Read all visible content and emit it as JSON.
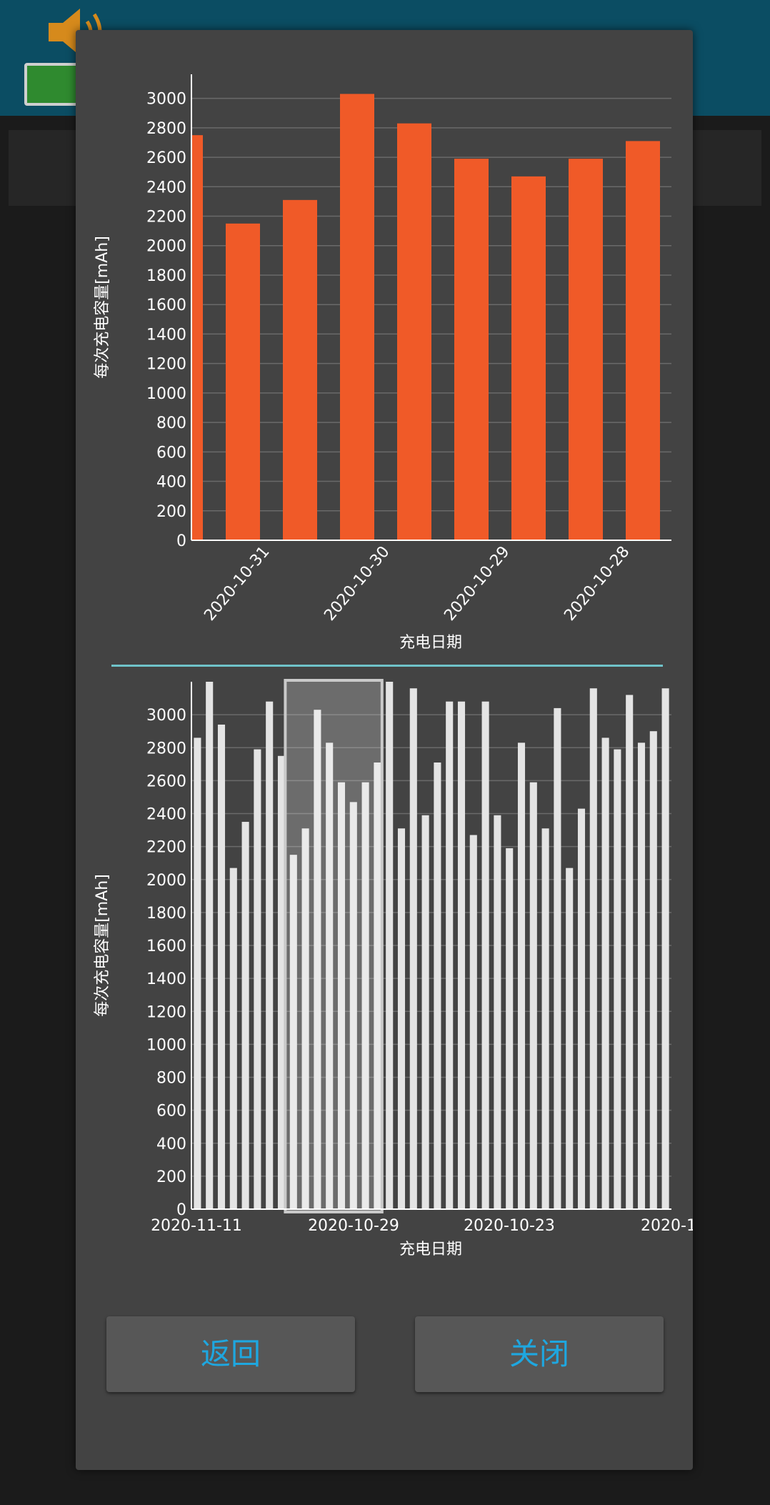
{
  "dialog": {
    "buttons": {
      "back_label": "返回",
      "close_label": "关闭"
    }
  },
  "colors": {
    "top_bar": "#f05a28",
    "bottom_bar": "#e4e4e4",
    "divider": "#6fc3c9",
    "button_text": "#1ea7e0"
  },
  "chart_data": [
    {
      "type": "bar",
      "ylabel": "每次充电容量[mAh]",
      "xlabel": "充电日期",
      "ylim": [
        0,
        3100
      ],
      "yticks": [
        0,
        200,
        400,
        600,
        800,
        1000,
        1200,
        1400,
        1600,
        1800,
        2000,
        2200,
        2400,
        2600,
        2800,
        3000
      ],
      "x_tick_labels": [
        "2020-10-31",
        "2020-10-30",
        "2020-10-29",
        "2020-10-28"
      ],
      "values": [
        2750,
        2150,
        2310,
        3030,
        2830,
        2590,
        2470,
        2590,
        2710
      ],
      "grid": true
    },
    {
      "type": "bar",
      "ylabel": "每次充电容量[mAh]",
      "xlabel": "充电日期",
      "ylim": [
        0,
        3200
      ],
      "yticks": [
        0,
        200,
        400,
        600,
        800,
        1000,
        1200,
        1400,
        1600,
        1800,
        2000,
        2200,
        2400,
        2600,
        2800,
        3000
      ],
      "x_tick_labels": [
        "2020-11-11",
        "2020-10-29",
        "2020-10-23",
        "2020-1"
      ],
      "values": [
        2860,
        3200,
        2940,
        2070,
        2350,
        2790,
        3080,
        2750,
        2150,
        2310,
        3030,
        2830,
        2590,
        2470,
        2590,
        2710,
        3200,
        2310,
        3160,
        2390,
        2710,
        3080,
        3080,
        2270,
        3080,
        2390,
        2190,
        2830,
        2590,
        2310,
        3040,
        2070,
        2430,
        3160,
        2860,
        2790,
        3120,
        2830,
        2900,
        3160
      ],
      "selected_range": [
        8,
        15
      ],
      "grid": true
    }
  ]
}
